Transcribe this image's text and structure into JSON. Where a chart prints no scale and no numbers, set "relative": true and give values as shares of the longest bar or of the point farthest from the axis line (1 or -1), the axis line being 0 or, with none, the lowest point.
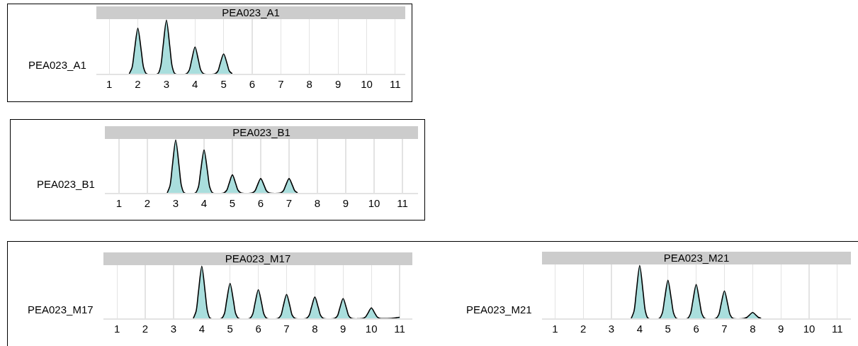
{
  "chart_data": [
    {
      "type": "area",
      "title": "PEA023_A1",
      "ylabel": "PEA023_A1",
      "relative": true,
      "grid": "x",
      "xlim": [
        0.55,
        11.35
      ],
      "xticks": [
        1,
        2,
        3,
        4,
        5,
        6,
        7,
        8,
        9,
        10,
        11
      ],
      "x": [
        1.7,
        1.8,
        1.88,
        2,
        2.12,
        2.2,
        2.3,
        2.7,
        2.8,
        2.88,
        3,
        3.12,
        3.2,
        3.3,
        3.7,
        3.8,
        3.88,
        4,
        4.12,
        4.2,
        4.3,
        4.7,
        4.8,
        4.88,
        5,
        5.12,
        5.2,
        5.3
      ],
      "series": [
        {
          "color": "#a9dedd",
          "values": [
            0,
            0.12,
            0.43,
            0.85,
            0.43,
            0.12,
            0,
            0,
            0.14,
            0.5,
            1,
            0.5,
            0.14,
            0,
            0,
            0.07,
            0.25,
            0.5,
            0.25,
            0.07,
            0,
            0,
            0.05,
            0.19,
            0.37,
            0.19,
            0.05,
            0
          ]
        }
      ]
    },
    {
      "type": "area",
      "title": "PEA023_B1",
      "ylabel": "PEA023_B1",
      "relative": true,
      "grid": "x",
      "xlim": [
        0.5,
        11.55
      ],
      "xticks": [
        1,
        2,
        3,
        4,
        5,
        6,
        7,
        8,
        9,
        10,
        11
      ],
      "x": [
        2.7,
        2.8,
        2.88,
        3,
        3.12,
        3.2,
        3.3,
        3.7,
        3.8,
        3.88,
        4,
        4.12,
        4.2,
        4.3,
        4.7,
        4.8,
        4.88,
        5,
        5.12,
        5.2,
        5.3,
        5.7,
        5.8,
        5.88,
        6,
        6.12,
        6.2,
        6.3,
        6.7,
        6.8,
        6.88,
        7,
        7.12,
        7.2,
        7.3
      ],
      "series": [
        {
          "color": "#a9dedd",
          "values": [
            0,
            0.14,
            0.5,
            1,
            0.5,
            0.14,
            0,
            0,
            0.11,
            0.41,
            0.81,
            0.41,
            0.11,
            0,
            0,
            0.05,
            0.17,
            0.34,
            0.17,
            0.05,
            0,
            0,
            0.04,
            0.14,
            0.27,
            0.14,
            0.04,
            0,
            0,
            0.04,
            0.14,
            0.27,
            0.14,
            0.04,
            0
          ]
        }
      ]
    },
    {
      "type": "area",
      "title": "PEA023_M17",
      "ylabel": "PEA023_M17",
      "relative": true,
      "grid": "x",
      "xlim": [
        0.52,
        11.45
      ],
      "xticks": [
        1,
        2,
        3,
        4,
        5,
        6,
        7,
        8,
        9,
        10,
        11
      ],
      "x": [
        3.7,
        3.8,
        3.88,
        4,
        4.12,
        4.2,
        4.3,
        4.7,
        4.8,
        4.88,
        5,
        5.12,
        5.2,
        5.3,
        5.7,
        5.8,
        5.88,
        6,
        6.12,
        6.2,
        6.3,
        6.7,
        6.8,
        6.88,
        7,
        7.12,
        7.2,
        7.3,
        7.7,
        7.8,
        7.88,
        8,
        8.12,
        8.2,
        8.3,
        8.7,
        8.8,
        8.88,
        9,
        9.12,
        9.2,
        9.3,
        9.7,
        9.8,
        9.88,
        10,
        10.12,
        10.2,
        10.3,
        10.7,
        11
      ],
      "series": [
        {
          "color": "#a9dedd",
          "values": [
            0,
            0.14,
            0.5,
            1,
            0.5,
            0.14,
            0,
            0,
            0.09,
            0.34,
            0.67,
            0.34,
            0.09,
            0,
            0,
            0.08,
            0.28,
            0.55,
            0.28,
            0.08,
            0,
            0,
            0.06,
            0.23,
            0.46,
            0.23,
            0.06,
            0,
            0,
            0.06,
            0.21,
            0.41,
            0.21,
            0.06,
            0,
            0,
            0.05,
            0.19,
            0.38,
            0.19,
            0.05,
            0,
            0,
            0.03,
            0.1,
            0.2,
            0.1,
            0.03,
            0,
            0,
            0.02
          ]
        }
      ]
    },
    {
      "type": "area",
      "title": "PEA023_M21",
      "ylabel": "PEA023_M21",
      "relative": true,
      "grid": "x",
      "xlim": [
        0.54,
        11.48
      ],
      "xticks": [
        1,
        2,
        3,
        4,
        5,
        6,
        7,
        8,
        9,
        10,
        11
      ],
      "x": [
        3.7,
        3.8,
        3.88,
        4,
        4.12,
        4.2,
        4.3,
        4.7,
        4.8,
        4.88,
        5,
        5.12,
        5.2,
        5.3,
        5.7,
        5.8,
        5.88,
        6,
        6.12,
        6.2,
        6.3,
        6.7,
        6.8,
        6.88,
        7,
        7.12,
        7.2,
        7.3,
        7.7,
        7.8,
        7.88,
        8,
        8.12,
        8.2,
        8.3
      ],
      "series": [
        {
          "color": "#a9dedd",
          "values": [
            0,
            0.14,
            0.5,
            1,
            0.5,
            0.14,
            0,
            0,
            0.1,
            0.36,
            0.72,
            0.36,
            0.1,
            0,
            0,
            0.09,
            0.32,
            0.64,
            0.32,
            0.09,
            0,
            0,
            0.07,
            0.26,
            0.52,
            0.26,
            0.07,
            0,
            0,
            0.02,
            0.06,
            0.11,
            0.06,
            0.02,
            0
          ]
        }
      ]
    }
  ]
}
